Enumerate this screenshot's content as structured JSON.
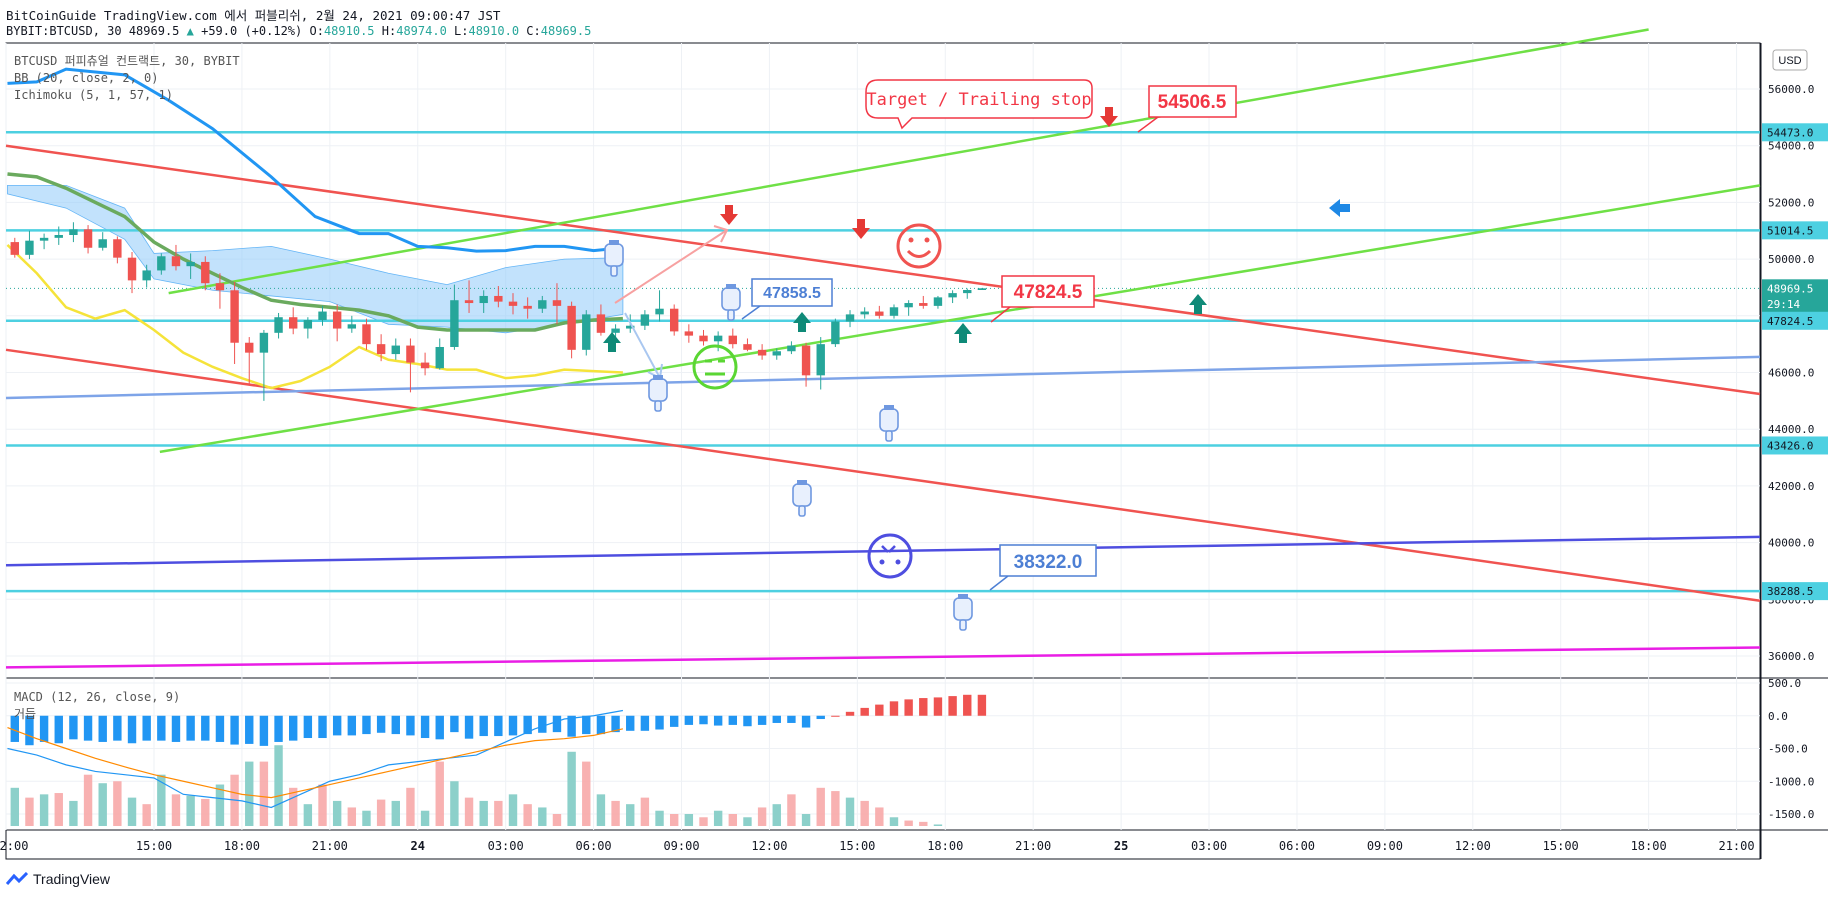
{
  "header": {
    "line1": "BitCoinGuide TradingView.com 에서 퍼블리쉬, 2월 24, 2021 09:00:47 JST",
    "symbol": "BYBIT:BTCUSD, 30",
    "last": "48969.5",
    "change": "+59.0 (+0.12%)",
    "o_label": "O:",
    "o": "48910.5",
    "h_label": "H:",
    "h": "48974.0",
    "l_label": "L:",
    "l": "48910.0",
    "c_label": "C:",
    "c": "48969.5"
  },
  "legend": {
    "line1": "BTCUSD 퍼피츄얼 컨트랙트, 30, BYBIT",
    "line2": "BB (20, close, 2, 0)",
    "line3": "Ichimoku (5, 1, 57, 1)"
  },
  "macd_legend": {
    "line1": "MACD (12, 26, close, 9)",
    "line2": "거듭"
  },
  "currency_button": "USD",
  "footer": {
    "brand": "TradingView"
  },
  "annotations": {
    "callout": "Target / Trailing stop",
    "label_top": "54506.5",
    "label_mid_red": "47824.5",
    "label_blue": "47858.5",
    "label_bottom": "38322.0"
  },
  "colors": {
    "up": "#26a69a",
    "down": "#ef5350",
    "cyan_level": "#4dd0e1",
    "red_channel": "#f05350",
    "green_channel": "#6fe046",
    "bb_upper": "#2196f3",
    "bb_middle": "#6aaa5e",
    "bb_lower": "#f5e33a",
    "cloud": "#90caf9",
    "magenta": "#e91ee5",
    "indigo": "#4e4ee0",
    "steel": "#7ea4e8"
  },
  "chart_data": [
    {
      "type": "candlestick",
      "title": "BTCUSD 퍼피츄얼 컨트랙트, 30, BYBIT",
      "price_axis": {
        "ylim": [
          35000,
          58000
        ],
        "ticks": [
          "56000.0",
          "54000.0",
          "52000.0",
          "50000.0",
          "48000.0",
          "46000.0",
          "44000.0",
          "42000.0",
          "40000.0",
          "38000.0",
          "36000.0"
        ],
        "level_labels": [
          {
            "label": "54473.0",
            "value": 54473
          },
          {
            "label": "51014.5",
            "value": 51014.5
          },
          {
            "label": "48969.5",
            "value": 48969.5
          },
          {
            "label": "29:14",
            "value": 48420
          },
          {
            "label": "47824.5",
            "value": 47824.5
          },
          {
            "label": "43426.0",
            "value": 43426
          },
          {
            "label": "38288.5",
            "value": 38288.5
          }
        ]
      },
      "time_axis": {
        "ticks": [
          "2:00",
          "15:00",
          "18:00",
          "21:00",
          "24",
          "03:00",
          "06:00",
          "09:00",
          "12:00",
          "15:00",
          "18:00",
          "21:00",
          "25",
          "03:00",
          "06:00",
          "09:00",
          "12:00",
          "15:00",
          "18:00",
          "21:00"
        ],
        "range_hours": [
          11.95,
          71.8
        ],
        "grid": true
      },
      "candles_ohlc": [
        [
          50600,
          50750,
          50050,
          50150
        ],
        [
          50150,
          51000,
          50000,
          50650
        ],
        [
          50650,
          50900,
          50350,
          50750
        ],
        [
          50750,
          51150,
          50500,
          50850
        ],
        [
          50850,
          51300,
          50600,
          51050
        ],
        [
          51050,
          51200,
          50200,
          50400
        ],
        [
          50400,
          50950,
          50300,
          50700
        ],
        [
          50700,
          50800,
          49850,
          50050
        ],
        [
          50050,
          50250,
          48800,
          49250
        ],
        [
          49250,
          49800,
          49000,
          49600
        ],
        [
          49600,
          50200,
          49450,
          50100
        ],
        [
          50100,
          50500,
          49600,
          49750
        ],
        [
          49750,
          50200,
          49300,
          49900
        ],
        [
          49900,
          50100,
          48900,
          49150
        ],
        [
          49150,
          49500,
          48250,
          48900
        ],
        [
          48900,
          49200,
          46300,
          47050
        ],
        [
          47050,
          47250,
          45600,
          46700
        ],
        [
          46700,
          47500,
          45000,
          47400
        ],
        [
          47400,
          48100,
          47200,
          47950
        ],
        [
          47950,
          48300,
          47350,
          47550
        ],
        [
          47550,
          47950,
          47200,
          47850
        ],
        [
          47850,
          48350,
          47650,
          48150
        ],
        [
          48150,
          48400,
          47100,
          47550
        ],
        [
          47550,
          48000,
          47400,
          47700
        ],
        [
          47700,
          47900,
          46800,
          47000
        ],
        [
          47000,
          47350,
          46400,
          46650
        ],
        [
          46650,
          47200,
          46450,
          46950
        ],
        [
          46950,
          47200,
          45300,
          46350
        ],
        [
          46350,
          46700,
          45900,
          46150
        ],
        [
          46150,
          47200,
          46100,
          46900
        ],
        [
          46900,
          49100,
          46800,
          48550
        ],
        [
          48550,
          49250,
          48100,
          48450
        ],
        [
          48450,
          48900,
          48100,
          48700
        ],
        [
          48700,
          49050,
          48300,
          48500
        ],
        [
          48500,
          48800,
          48050,
          48350
        ],
        [
          48350,
          48650,
          47900,
          48250
        ],
        [
          48250,
          48700,
          48100,
          48550
        ],
        [
          48550,
          49150,
          47700,
          48350
        ],
        [
          48350,
          48500,
          46500,
          46800
        ],
        [
          46800,
          48200,
          46600,
          48050
        ],
        [
          48050,
          48400,
          47300,
          47400
        ],
        [
          47400,
          47700,
          47100,
          47550
        ],
        [
          47550,
          48050,
          47400,
          47650
        ],
        [
          47650,
          48200,
          47500,
          48050
        ],
        [
          48050,
          48900,
          47800,
          48250
        ],
        [
          48250,
          48400,
          47300,
          47450
        ],
        [
          47450,
          47700,
          47050,
          47300
        ],
        [
          47300,
          47500,
          46950,
          47100
        ],
        [
          47100,
          47450,
          46750,
          47300
        ],
        [
          47300,
          47550,
          46850,
          47000
        ],
        [
          47000,
          47200,
          46750,
          46800
        ],
        [
          46800,
          47000,
          46450,
          46600
        ],
        [
          46600,
          46850,
          46450,
          46750
        ],
        [
          46750,
          47100,
          46650,
          46950
        ],
        [
          46950,
          47050,
          45500,
          45900
        ],
        [
          45900,
          47250,
          45400,
          47000
        ],
        [
          47000,
          47900,
          46900,
          47800
        ],
        [
          47800,
          48200,
          47600,
          48050
        ],
        [
          48050,
          48300,
          47900,
          48150
        ],
        [
          48150,
          48350,
          47900,
          48000
        ],
        [
          48000,
          48400,
          47900,
          48300
        ],
        [
          48300,
          48550,
          48000,
          48450
        ],
        [
          48450,
          48700,
          48250,
          48350
        ],
        [
          48350,
          48700,
          48250,
          48650
        ],
        [
          48650,
          48900,
          48450,
          48800
        ],
        [
          48800,
          48960,
          48600,
          48910
        ],
        [
          48910,
          48974,
          48910,
          48969.5
        ]
      ],
      "overlays": [
        {
          "name": "BB (20, close, 2, 0) upper",
          "color": "#2196f3",
          "x": [
            12,
            13,
            14,
            16,
            17.5,
            19,
            21,
            22.5,
            24,
            25,
            26,
            27,
            28,
            29,
            30,
            31,
            32,
            33
          ],
          "y": [
            56200,
            56250,
            56700,
            56500,
            55600,
            54600,
            52900,
            51500,
            50900,
            50900,
            50450,
            50400,
            50280,
            50300,
            50450,
            50450,
            50300,
            50400
          ]
        },
        {
          "name": "BB (20, close, 2, 0) basis",
          "color": "#6aaa5e",
          "x": [
            12,
            13,
            14,
            15,
            16,
            17,
            18,
            19,
            20,
            21,
            22,
            23,
            24,
            25,
            26,
            27,
            28,
            29,
            30,
            31,
            32,
            33
          ],
          "y": [
            53000,
            52900,
            52500,
            52000,
            51500,
            50600,
            50000,
            49500,
            49000,
            48550,
            48400,
            48300,
            48200,
            48000,
            47600,
            47500,
            47500,
            47500,
            47500,
            47750,
            47850,
            47900
          ]
        },
        {
          "name": "BB (20, close, 2, 0) lower",
          "color": "#f5e33a",
          "x": [
            12,
            13,
            14,
            15,
            16,
            17,
            18,
            19,
            20,
            21,
            22,
            23,
            24,
            25,
            26,
            27,
            28,
            29,
            30,
            31,
            32,
            33
          ],
          "y": [
            50500,
            49500,
            48300,
            47900,
            48200,
            47500,
            46700,
            46200,
            45800,
            45450,
            45700,
            46200,
            46900,
            46450,
            46300,
            46100,
            46100,
            45800,
            45900,
            46100,
            46050,
            46000
          ]
        },
        {
          "name": "Ichimoku cloud",
          "color": "#90caf9",
          "x": [
            12,
            14,
            16,
            17,
            19,
            21,
            23,
            25,
            27,
            29,
            31,
            33
          ],
          "upper": [
            52600,
            52600,
            51800,
            50200,
            50300,
            50450,
            50000,
            49500,
            49100,
            49700,
            50000,
            50050
          ],
          "lower": [
            52300,
            51800,
            50700,
            49300,
            48900,
            48700,
            48500,
            47700,
            47600,
            47400,
            47700,
            48050
          ]
        }
      ],
      "levels": [
        {
          "name": "resistance 54473.0",
          "value": 54473,
          "color": "#4dd0e1"
        },
        {
          "name": "51014.5",
          "value": 51014.5,
          "color": "#4dd0e1"
        },
        {
          "name": "47824.5",
          "value": 47824.5,
          "color": "#4dd0e1"
        },
        {
          "name": "43426.0",
          "value": 43426,
          "color": "#4dd0e1"
        },
        {
          "name": "38288.5",
          "value": 38288.5,
          "color": "#4dd0e1"
        }
      ],
      "trend_lines": [
        {
          "name": "red-channel-top",
          "color": "#f05350",
          "from": [
            11.95,
            54000
          ],
          "to": [
            71.8,
            45240
          ]
        },
        {
          "name": "red-channel-bottom",
          "color": "#f05350",
          "from": [
            11.95,
            46800
          ],
          "to": [
            71.8,
            37950
          ]
        },
        {
          "name": "green-channel-top",
          "color": "#6fe046",
          "from": [
            17.5,
            48800
          ],
          "to": [
            68.0,
            58100
          ]
        },
        {
          "name": "green-channel-bottom",
          "color": "#6fe046",
          "from": [
            17.2,
            43200
          ],
          "to": [
            71.8,
            52600
          ]
        },
        {
          "name": "steel-line",
          "color": "#7ea4e8",
          "from": [
            11.95,
            45100
          ],
          "to": [
            71.8,
            46550
          ]
        },
        {
          "name": "indigo-line",
          "color": "#4e4ee0",
          "from": [
            11.95,
            39200
          ],
          "to": [
            71.8,
            40200
          ]
        },
        {
          "name": "magenta-line",
          "color": "#e91ee5",
          "from": [
            11.95,
            35600
          ],
          "to": [
            71.8,
            36300
          ]
        }
      ]
    },
    {
      "type": "bar",
      "title": "MACD (12, 26, close, 9)",
      "ylim": [
        -1800,
        600
      ],
      "ticks": [
        "500.0",
        "0.0",
        "-500.0",
        "-1000.0",
        "-1500.0"
      ],
      "histogram": [
        -400,
        -450,
        -400,
        -420,
        -360,
        -380,
        -400,
        -380,
        -420,
        -380,
        -380,
        -400,
        -380,
        -380,
        -400,
        -440,
        -430,
        -460,
        -400,
        -380,
        -340,
        -340,
        -300,
        -300,
        -280,
        -260,
        -280,
        -300,
        -340,
        -360,
        -250,
        -350,
        -310,
        -310,
        -300,
        -280,
        -260,
        -250,
        -320,
        -280,
        -280,
        -250,
        -230,
        -230,
        -210,
        -170,
        -140,
        -130,
        -150,
        -140,
        -160,
        -140,
        -110,
        -110,
        -180,
        -50,
        0,
        60,
        120,
        170,
        220,
        250,
        270,
        280,
        300,
        320,
        320
      ],
      "volume_like_bars": [
        -1100,
        -1250,
        -1200,
        -1180,
        -1300,
        -900,
        -1030,
        -1000,
        -1250,
        -1350,
        -900,
        -1200,
        -1220,
        -1270,
        -1050,
        -900,
        -700,
        -700,
        -450,
        -1100,
        -1350,
        -1050,
        -1300,
        -1400,
        -1450,
        -1280,
        -1300,
        -1100,
        -1450,
        -700,
        -1000,
        -1250,
        -1300,
        -1300,
        -1200,
        -1350,
        -1400,
        -1500,
        -550,
        -700,
        -1200,
        -1300,
        -1350,
        -1250,
        -1450,
        -1500,
        -1500,
        -1550,
        -1450,
        -1500,
        -1550,
        -1400,
        -1350,
        -1200,
        -1500,
        -1100,
        -1150,
        -1250,
        -1300,
        -1400,
        -1550,
        -1600,
        -1620,
        -1660,
        -1700,
        -1700,
        -1750
      ],
      "series": [
        {
          "name": "MACD",
          "color": "#2196f3",
          "x": [
            12,
            13,
            14,
            15,
            16,
            17,
            18,
            19,
            20,
            21,
            22,
            23,
            24,
            25,
            26,
            27,
            28,
            29,
            30,
            31,
            32,
            33
          ],
          "y": [
            -500,
            -600,
            -750,
            -850,
            -900,
            -950,
            -1200,
            -1250,
            -1300,
            -1400,
            -1200,
            -1000,
            -900,
            -750,
            -700,
            -650,
            -600,
            -400,
            -200,
            -50,
            0,
            80
          ]
        },
        {
          "name": "Signal",
          "color": "#ff8a00",
          "x": [
            12,
            13,
            14,
            15,
            16,
            17,
            18,
            19,
            20,
            21,
            22,
            23,
            24,
            25,
            26,
            27,
            28,
            29,
            30,
            31,
            32,
            33
          ],
          "y": [
            -180,
            -350,
            -500,
            -650,
            -780,
            -900,
            -1000,
            -1100,
            -1200,
            -1250,
            -1150,
            -1050,
            -950,
            -850,
            -750,
            -650,
            -550,
            -450,
            -380,
            -350,
            -300,
            -200
          ]
        }
      ]
    }
  ]
}
